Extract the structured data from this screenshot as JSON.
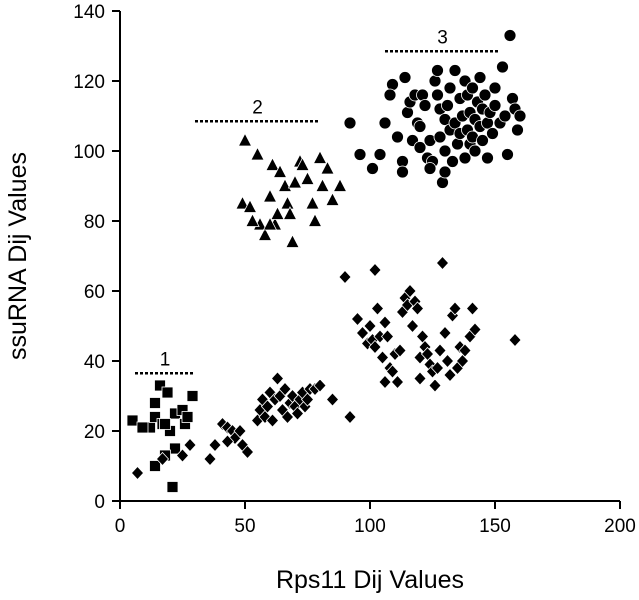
{
  "chart_data": {
    "type": "scatter",
    "xlabel": "Rps11 Dij Values",
    "ylabel": "ssuRNA Dij Values",
    "xlim": [
      0,
      200
    ],
    "ylim": [
      0,
      140
    ],
    "x_ticks": [
      0,
      50,
      100,
      150,
      200
    ],
    "y_ticks": [
      0,
      20,
      40,
      60,
      80,
      100,
      120,
      140
    ],
    "grid": false,
    "legend": "none",
    "color": "#000000",
    "series": [
      {
        "marker": "square",
        "points": [
          [
            5,
            23
          ],
          [
            12,
            21
          ],
          [
            14,
            28
          ],
          [
            16,
            33
          ],
          [
            19,
            31
          ],
          [
            22,
            25
          ],
          [
            25,
            26
          ],
          [
            14,
            24
          ],
          [
            17,
            22
          ],
          [
            20,
            20
          ],
          [
            29,
            30
          ],
          [
            9,
            21
          ],
          [
            18,
            22
          ],
          [
            22,
            15
          ],
          [
            26,
            22
          ],
          [
            14,
            10
          ],
          [
            21,
            4
          ],
          [
            18,
            13
          ],
          [
            27,
            24
          ]
        ]
      },
      {
        "marker": "diamond",
        "points": [
          [
            7,
            8
          ],
          [
            17,
            12
          ],
          [
            25,
            13
          ],
          [
            28,
            16
          ],
          [
            36,
            12
          ],
          [
            38,
            16
          ],
          [
            41,
            22
          ],
          [
            43,
            21
          ],
          [
            45,
            20
          ],
          [
            46,
            18
          ],
          [
            43,
            17
          ],
          [
            48,
            20
          ],
          [
            49,
            16
          ],
          [
            51,
            14
          ],
          [
            55,
            23
          ],
          [
            56,
            26
          ],
          [
            57,
            29
          ],
          [
            58,
            24
          ],
          [
            59,
            27
          ],
          [
            60,
            31
          ],
          [
            61,
            23
          ],
          [
            62,
            29
          ],
          [
            63,
            35
          ],
          [
            64,
            30
          ],
          [
            65,
            26
          ],
          [
            66,
            32
          ],
          [
            67,
            24
          ],
          [
            68,
            28
          ],
          [
            69,
            30
          ],
          [
            70,
            27
          ],
          [
            71,
            25
          ],
          [
            72,
            29
          ],
          [
            73,
            31
          ],
          [
            74,
            27
          ],
          [
            75,
            29
          ],
          [
            76,
            32
          ],
          [
            78,
            32
          ],
          [
            80,
            33
          ],
          [
            85,
            29
          ],
          [
            90,
            64
          ],
          [
            92,
            24
          ],
          [
            95,
            52
          ],
          [
            97,
            48
          ],
          [
            99,
            45
          ],
          [
            100,
            50
          ],
          [
            101,
            46
          ],
          [
            102,
            44
          ],
          [
            103,
            55
          ],
          [
            104,
            47
          ],
          [
            105,
            41
          ],
          [
            106,
            51
          ],
          [
            107,
            47
          ],
          [
            108,
            38
          ],
          [
            109,
            37
          ],
          [
            110,
            42
          ],
          [
            111,
            34
          ],
          [
            112,
            43
          ],
          [
            113,
            54
          ],
          [
            114,
            58
          ],
          [
            115,
            56
          ],
          [
            116,
            60
          ],
          [
            117,
            50
          ],
          [
            118,
            57
          ],
          [
            119,
            55
          ],
          [
            120,
            41
          ],
          [
            121,
            47
          ],
          [
            122,
            44
          ],
          [
            123,
            42
          ],
          [
            124,
            39
          ],
          [
            125,
            37
          ],
          [
            126,
            33
          ],
          [
            127,
            38
          ],
          [
            128,
            43
          ],
          [
            129,
            68
          ],
          [
            130,
            48
          ],
          [
            131,
            40
          ],
          [
            132,
            36
          ],
          [
            133,
            53
          ],
          [
            134,
            55
          ],
          [
            135,
            38
          ],
          [
            136,
            44
          ],
          [
            137,
            40
          ],
          [
            138,
            43
          ],
          [
            140,
            47
          ],
          [
            141,
            55
          ],
          [
            142,
            49
          ],
          [
            106,
            34
          ],
          [
            120,
            35
          ],
          [
            102,
            66
          ],
          [
            158,
            46
          ]
        ]
      },
      {
        "marker": "triangle",
        "points": [
          [
            49,
            85
          ],
          [
            50,
            103
          ],
          [
            52,
            84
          ],
          [
            55,
            99
          ],
          [
            56,
            79
          ],
          [
            58,
            76
          ],
          [
            60,
            87
          ],
          [
            61,
            96
          ],
          [
            62,
            79
          ],
          [
            63,
            82
          ],
          [
            64,
            94
          ],
          [
            66,
            90
          ],
          [
            67,
            85
          ],
          [
            68,
            82
          ],
          [
            69,
            74
          ],
          [
            70,
            91
          ],
          [
            72,
            97
          ],
          [
            73,
            96
          ],
          [
            75,
            92
          ],
          [
            77,
            85
          ],
          [
            78,
            80
          ],
          [
            80,
            98
          ],
          [
            81,
            90
          ],
          [
            83,
            95
          ],
          [
            85,
            86
          ],
          [
            88,
            90
          ],
          [
            53,
            80
          ],
          [
            60,
            79
          ]
        ]
      },
      {
        "marker": "circle",
        "points": [
          [
            92,
            108
          ],
          [
            96,
            99
          ],
          [
            101,
            95
          ],
          [
            106,
            108
          ],
          [
            109,
            119
          ],
          [
            111,
            104
          ],
          [
            113,
            97
          ],
          [
            113,
            94
          ],
          [
            115,
            111
          ],
          [
            116,
            114
          ],
          [
            117,
            103
          ],
          [
            118,
            116
          ],
          [
            119,
            108
          ],
          [
            120,
            107
          ],
          [
            120,
            101
          ],
          [
            121,
            116
          ],
          [
            122,
            113
          ],
          [
            123,
            98
          ],
          [
            124,
            103
          ],
          [
            125,
            97
          ],
          [
            126,
            120
          ],
          [
            127,
            123
          ],
          [
            127,
            116
          ],
          [
            128,
            112
          ],
          [
            128,
            104
          ],
          [
            129,
            91
          ],
          [
            130,
            109
          ],
          [
            130,
            100
          ],
          [
            131,
            113
          ],
          [
            132,
            118
          ],
          [
            132,
            106
          ],
          [
            133,
            97
          ],
          [
            134,
            123
          ],
          [
            134,
            108
          ],
          [
            135,
            102
          ],
          [
            136,
            115
          ],
          [
            136,
            105
          ],
          [
            137,
            110
          ],
          [
            138,
            98
          ],
          [
            138,
            120
          ],
          [
            139,
            116
          ],
          [
            139,
            106
          ],
          [
            140,
            111
          ],
          [
            140,
            102
          ],
          [
            141,
            104
          ],
          [
            141,
            118
          ],
          [
            142,
            109
          ],
          [
            142,
            100
          ],
          [
            143,
            114
          ],
          [
            144,
            107
          ],
          [
            144,
            121
          ],
          [
            145,
            112
          ],
          [
            145,
            103
          ],
          [
            146,
            116
          ],
          [
            147,
            108
          ],
          [
            147,
            98
          ],
          [
            148,
            111
          ],
          [
            149,
            105
          ],
          [
            150,
            113
          ],
          [
            150,
            118
          ],
          [
            152,
            108
          ],
          [
            153,
            124
          ],
          [
            154,
            110
          ],
          [
            155,
            99
          ],
          [
            156,
            133
          ],
          [
            157,
            115
          ],
          [
            158,
            112
          ],
          [
            159,
            106
          ],
          [
            160,
            110
          ],
          [
            124,
            95
          ],
          [
            130,
            94
          ],
          [
            114,
            121
          ],
          [
            108,
            116
          ],
          [
            104,
            99
          ]
        ]
      }
    ],
    "annotations": [
      {
        "label": "1",
        "x_start": 6,
        "x_end": 30,
        "y": 36.5
      },
      {
        "label": "2",
        "x_start": 30,
        "x_end": 80,
        "y": 108.5
      },
      {
        "label": "3",
        "x_start": 106,
        "x_end": 152,
        "y": 128.5
      }
    ]
  }
}
